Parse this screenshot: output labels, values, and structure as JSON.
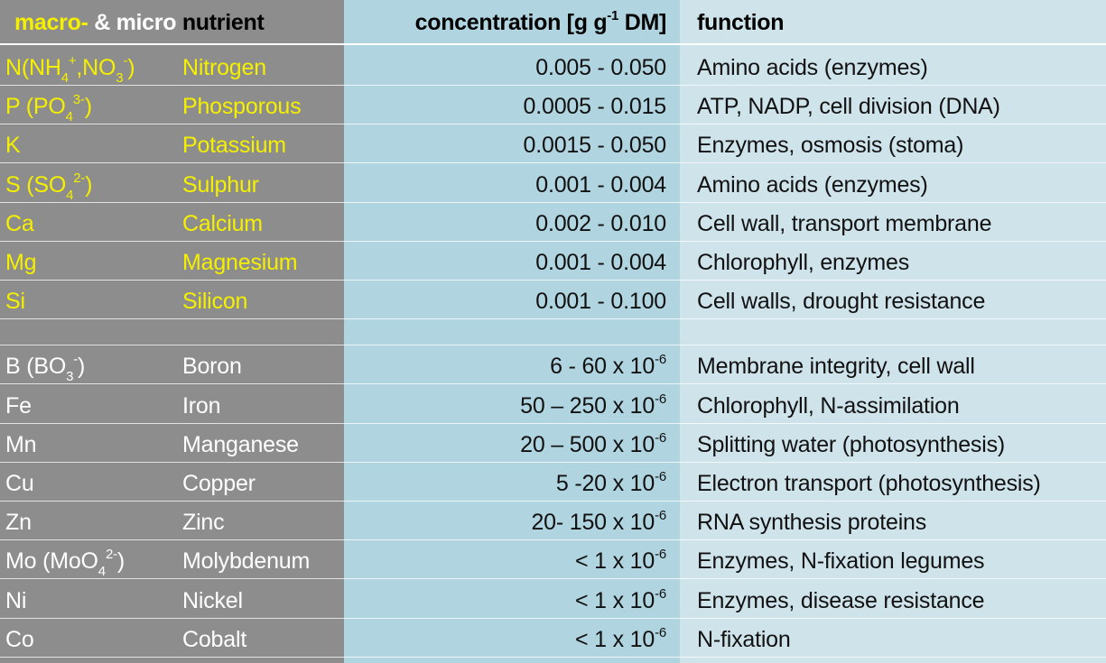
{
  "header": {
    "nutrient_part1": "macro-",
    "nutrient_part2": " & micro",
    "nutrient_part3": " nutrient",
    "concentration_pre": "concentration [g g",
    "concentration_sup": "-1",
    "concentration_post": " DM]",
    "function": "function"
  },
  "macro_rows": [
    {
      "sym_parts": [
        "N(NH",
        "4",
        "+",
        ",NO",
        "3",
        "-",
        ")"
      ],
      "name": "Nitrogen",
      "conc": "0.005 - 0.050",
      "func": "Amino acids (enzymes)"
    },
    {
      "sym_parts": [
        "P (PO",
        "4",
        "3-",
        ")"
      ],
      "name": "Phosporous",
      "conc": "0.0005 - 0.015",
      "func": "ATP, NADP, cell division (DNA)"
    },
    {
      "sym": "K",
      "name": "Potassium",
      "conc": "0.0015 - 0.050",
      "func": "Enzymes, osmosis (stoma)"
    },
    {
      "sym_parts": [
        "S (SO",
        "4",
        "2-",
        ")"
      ],
      "name": "Sulphur",
      "conc": "0.001 - 0.004",
      "func": "Amino acids (enzymes)"
    },
    {
      "sym": "Ca",
      "name": "Calcium",
      "conc": "0.002 - 0.010",
      "func": "Cell wall, transport membrane"
    },
    {
      "sym": "Mg",
      "name": "Magnesium",
      "conc": "0.001 - 0.004",
      "func": "Chlorophyll, enzymes"
    },
    {
      "sym": "Si",
      "name": "Silicon",
      "conc": "0.001 - 0.100",
      "func": "Cell walls, drought resistance"
    }
  ],
  "micro_rows": [
    {
      "sym_parts": [
        "B (BO",
        "3",
        "-",
        ")"
      ],
      "name": "Boron",
      "conc": "6 - 60 x 10",
      "exp": "-6",
      "func": "Membrane integrity, cell wall"
    },
    {
      "sym": "Fe",
      "name": "Iron",
      "conc": "50 – 250 x 10",
      "exp": "-6",
      "func": "Chlorophyll, N-assimilation"
    },
    {
      "sym": "Mn",
      "name": "Manganese",
      "conc": "20 – 500 x 10",
      "exp": "-6",
      "func": "Splitting water (photosynthesis)"
    },
    {
      "sym": "Cu",
      "name": "Copper",
      "conc": "5 -20 x 10",
      "exp": "-6",
      "func": "Electron transport (photosynthesis)"
    },
    {
      "sym": "Zn",
      "name": "Zinc",
      "conc": "20- 150 x 10",
      "exp": "-6",
      "func": "RNA synthesis proteins"
    },
    {
      "sym_parts": [
        "Mo (MoO",
        "4",
        "2-",
        ")"
      ],
      "name": "Molybdenum",
      "conc": "< 1 x 10",
      "exp": "-6",
      "func": "Enzymes, N-fixation legumes"
    },
    {
      "sym": "Ni",
      "name": "Nickel",
      "conc": "< 1 x 10",
      "exp": "-6",
      "func": "Enzymes, disease resistance"
    },
    {
      "sym": "Co",
      "name": "Cobalt",
      "conc": "< 1 x 10",
      "exp": "-6",
      "func": "N-fixation"
    }
  ],
  "colors": {
    "left_column": "#8d8d8d",
    "middle_column": "#b0d5e0",
    "right_column": "#cfe3eb",
    "macro_text": "#f4f000",
    "micro_text": "#ffffff"
  }
}
